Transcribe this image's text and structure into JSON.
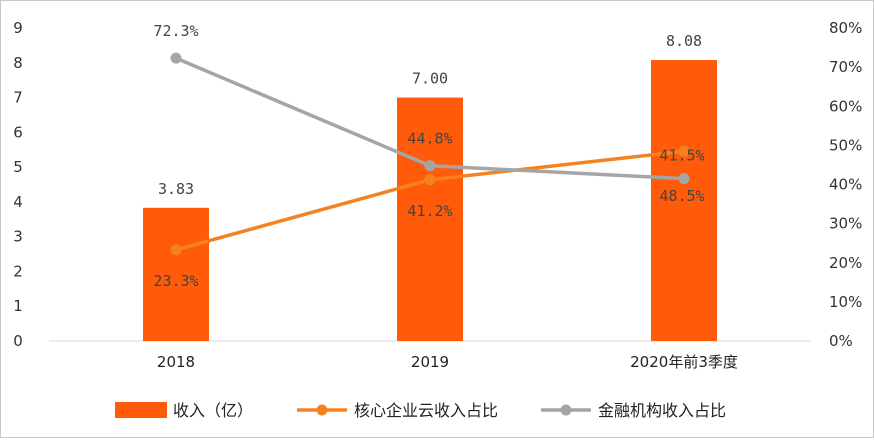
{
  "chart_data": {
    "type": "bar+line",
    "categories": [
      "2018",
      "2019",
      "2020年前3季度"
    ],
    "bar_series": {
      "name": "收入（亿）",
      "values": [
        3.83,
        7.0,
        8.08
      ],
      "labels": [
        "3.83",
        "7.00",
        "8.08"
      ],
      "color": "#FF5B0A"
    },
    "line_series": [
      {
        "name": "核心企业云收入占比",
        "values": [
          23.3,
          41.2,
          48.5
        ],
        "labels": [
          "23.3%",
          "41.2%",
          "48.5%"
        ],
        "color": "#F58220"
      },
      {
        "name": "金融机构收入占比",
        "values": [
          72.3,
          44.8,
          41.5
        ],
        "labels": [
          "72.3%",
          "44.8%",
          "41.5%"
        ],
        "color": "#A5A5A5"
      }
    ],
    "y_left": {
      "ylim": [
        0,
        9
      ],
      "ticks": [
        "0",
        "1",
        "2",
        "3",
        "4",
        "5",
        "6",
        "7",
        "8",
        "9"
      ]
    },
    "y_right": {
      "ylim": [
        0,
        80
      ],
      "ticks": [
        "0%",
        "10%",
        "20%",
        "30%",
        "40%",
        "50%",
        "60%",
        "70%",
        "80%"
      ]
    },
    "legend_position": "bottom",
    "grid": false
  }
}
